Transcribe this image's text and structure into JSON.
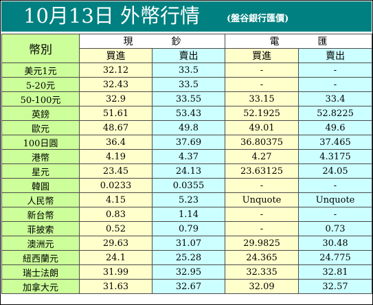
{
  "title": "10月13日 外幣行情",
  "source": "(盤谷銀行匯價)",
  "headers": {
    "currency": "幣別",
    "cash": "現　　　　鈔",
    "transfer": "電　　　　匯",
    "buy": "買進",
    "sell": "賣出"
  },
  "colors": {
    "title_bg": "#008080",
    "currency_col": "#ccff99",
    "buy_col": "#ffffcc",
    "sell_col": "#ccffff"
  },
  "rows": [
    {
      "currency": "美元1元",
      "cash_buy": "32.12",
      "cash_sell": "33.5",
      "tt_buy": "-",
      "tt_sell": "-"
    },
    {
      "currency": "5-20元",
      "cash_buy": "32.43",
      "cash_sell": "33.5",
      "tt_buy": "-",
      "tt_sell": "-"
    },
    {
      "currency": "50-100元",
      "cash_buy": "32.9",
      "cash_sell": "33.55",
      "tt_buy": "33.15",
      "tt_sell": "33.4"
    },
    {
      "currency": "英鎊",
      "cash_buy": "51.61",
      "cash_sell": "53.43",
      "tt_buy": "52.1925",
      "tt_sell": "52.8225"
    },
    {
      "currency": "歐元",
      "cash_buy": "48.67",
      "cash_sell": "49.8",
      "tt_buy": "49.01",
      "tt_sell": "49.6"
    },
    {
      "currency": "100日圓",
      "cash_buy": "36.4",
      "cash_sell": "37.69",
      "tt_buy": "36.80375",
      "tt_sell": "37.465"
    },
    {
      "currency": "港幣",
      "cash_buy": "4.19",
      "cash_sell": "4.37",
      "tt_buy": "4.27",
      "tt_sell": "4.3175"
    },
    {
      "currency": "星元",
      "cash_buy": "23.45",
      "cash_sell": "24.13",
      "tt_buy": "23.63125",
      "tt_sell": "24.05"
    },
    {
      "currency": "韓圓",
      "cash_buy": "0.0233",
      "cash_sell": "0.0355",
      "tt_buy": "-",
      "tt_sell": "-"
    },
    {
      "currency": "人民幣",
      "cash_buy": "4.15",
      "cash_sell": "5.23",
      "tt_buy": "Unquote",
      "tt_sell": "Unquote"
    },
    {
      "currency": "新台幣",
      "cash_buy": "0.83",
      "cash_sell": "1.14",
      "tt_buy": "-",
      "tt_sell": "-"
    },
    {
      "currency": "菲披索",
      "cash_buy": "0.52",
      "cash_sell": "0.79",
      "tt_buy": "-",
      "tt_sell": "0.73"
    },
    {
      "currency": "澳洲元",
      "cash_buy": "29.63",
      "cash_sell": "31.07",
      "tt_buy": "29.9825",
      "tt_sell": "30.48"
    },
    {
      "currency": "紐西蘭元",
      "cash_buy": "24.1",
      "cash_sell": "25.28",
      "tt_buy": "24.365",
      "tt_sell": "24.775"
    },
    {
      "currency": "瑞士法朗",
      "cash_buy": "31.99",
      "cash_sell": "32.95",
      "tt_buy": "32.335",
      "tt_sell": "32.81"
    },
    {
      "currency": "加拿大元",
      "cash_buy": "31.63",
      "cash_sell": "32.67",
      "tt_buy": "32.09",
      "tt_sell": "32.57"
    }
  ]
}
